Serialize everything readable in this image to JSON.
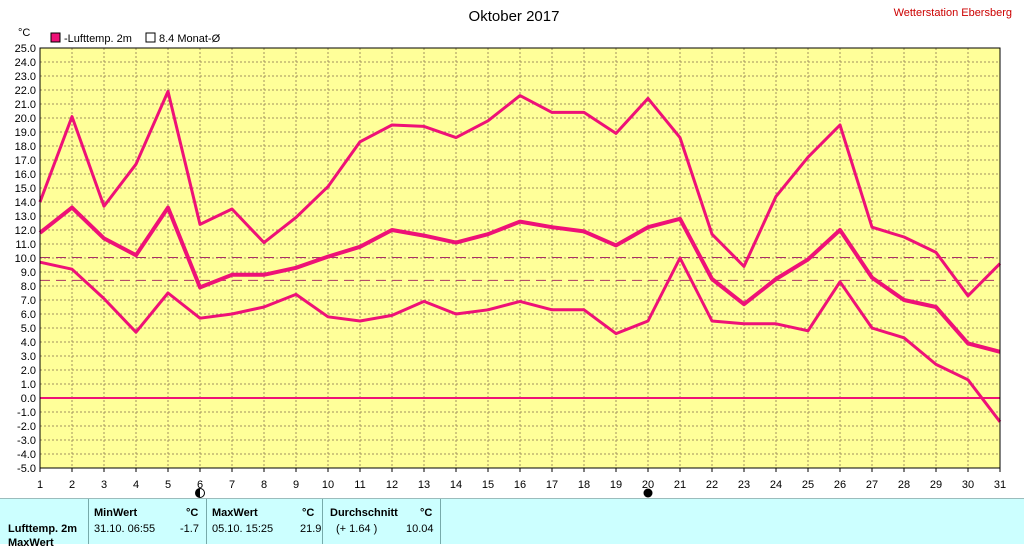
{
  "header": {
    "title": "Oktober 2017",
    "station": "Wetterstation Ebersberg",
    "unit": "°C"
  },
  "legend": [
    {
      "label": "-Lufttemp. 2m",
      "filled": true
    },
    {
      "label": "8.4 Monat-Ø",
      "filled": false
    }
  ],
  "colors": {
    "series": "#ee1177",
    "plot_bg": "#ffff99",
    "grid": "#a09060",
    "station": "#cc0000",
    "mean_dash": "#aa3366",
    "panel_bg": "#ccffff"
  },
  "chart_data": {
    "type": "line",
    "title": "Oktober 2017",
    "ylabel": "°C",
    "ylim": [
      -5,
      25
    ],
    "y_ticks": [
      "25.0",
      "24.0",
      "23.0",
      "22.0",
      "21.0",
      "20.0",
      "19.0",
      "18.0",
      "17.0",
      "16.0",
      "15.0",
      "14.0",
      "13.0",
      "12.0",
      "11.0",
      "10.0",
      "9.0",
      "8.0",
      "7.0",
      "6.0",
      "5.0",
      "4.0",
      "3.0",
      "2.0",
      "1.0",
      "0.0",
      "-1.0",
      "-2.0",
      "-3.0",
      "-4.0",
      "-5.0"
    ],
    "x": [
      "1",
      "2",
      "3",
      "4",
      "5",
      "6",
      "7",
      "8",
      "9",
      "10",
      "11",
      "12",
      "13",
      "14",
      "15",
      "16",
      "17",
      "18",
      "19",
      "20",
      "21",
      "22",
      "23",
      "24",
      "25",
      "26",
      "27",
      "28",
      "29",
      "30",
      "31"
    ],
    "grid": true,
    "series": [
      {
        "role": "max",
        "width": 3,
        "values": [
          14.0,
          20.1,
          13.7,
          16.7,
          21.9,
          12.4,
          13.5,
          11.1,
          12.9,
          15.1,
          18.3,
          19.5,
          19.4,
          18.6,
          19.8,
          21.6,
          20.4,
          20.4,
          18.9,
          21.4,
          18.6,
          11.7,
          9.4,
          14.4,
          17.2,
          19.5,
          12.2,
          11.5,
          10.4,
          7.3,
          9.6
        ]
      },
      {
        "role": "mean",
        "width": 4,
        "values": [
          11.8,
          13.6,
          11.4,
          10.2,
          13.6,
          7.9,
          8.8,
          8.8,
          9.3,
          10.1,
          10.8,
          12.0,
          11.6,
          11.1,
          11.7,
          12.6,
          12.2,
          11.9,
          10.9,
          12.2,
          12.8,
          8.5,
          6.7,
          8.5,
          9.9,
          12.0,
          8.6,
          7.0,
          6.5,
          3.9,
          3.3
        ]
      },
      {
        "role": "min",
        "width": 3,
        "values": [
          9.7,
          9.2,
          7.1,
          4.7,
          7.5,
          5.7,
          6.0,
          6.5,
          7.4,
          5.8,
          5.5,
          5.9,
          6.9,
          6.0,
          6.3,
          6.9,
          6.3,
          6.3,
          4.6,
          5.5,
          10.0,
          5.5,
          5.3,
          5.3,
          4.8,
          8.3,
          5.0,
          4.3,
          2.4,
          1.3,
          -1.7
        ]
      }
    ],
    "reference_lines": [
      {
        "value": 10.04,
        "style": "dashed"
      },
      {
        "value": 8.4,
        "style": "dashed"
      },
      {
        "value": 0.0,
        "style": "solid"
      }
    ],
    "markers": [
      {
        "x": "6",
        "symbol": "first-quarter moon"
      },
      {
        "x": "20",
        "symbol": "new moon"
      }
    ]
  },
  "stats": {
    "row_label": "Lufttemp. 2m",
    "next_row_label": "MaxWert",
    "min": {
      "header": "MinWert",
      "unit": "°C",
      "datetime": "31.10.  06:55",
      "value": "-1.7"
    },
    "max": {
      "header": "MaxWert",
      "unit": "°C",
      "datetime": "05.10.  15:25",
      "value": "21.9"
    },
    "avg": {
      "header": "Durchschnitt",
      "unit": "°C",
      "deviation": "(+ 1.64 )",
      "value": "10.04"
    }
  }
}
